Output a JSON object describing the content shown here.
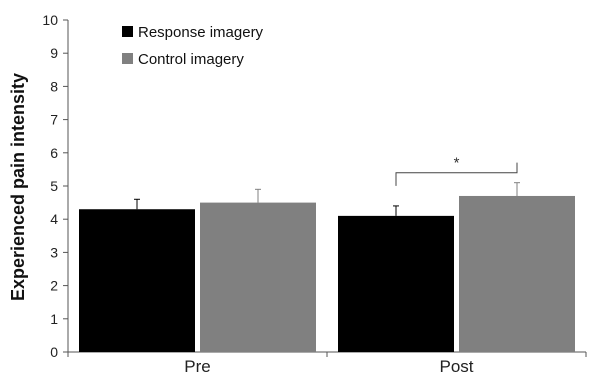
{
  "chart_data": {
    "type": "bar",
    "title": "",
    "xlabel": "",
    "ylabel": "Experienced pain intensity",
    "ylim": [
      0,
      10
    ],
    "yticks": [
      "0",
      "1",
      "2",
      "3",
      "4",
      "5",
      "6",
      "7",
      "8",
      "9",
      "10"
    ],
    "categories": [
      "Pre",
      "Post"
    ],
    "series": [
      {
        "name": "Response imagery",
        "color": "#000000",
        "values": [
          4.3,
          4.1
        ],
        "errors": [
          0.3,
          0.3
        ]
      },
      {
        "name": "Control imagery",
        "color": "#808080",
        "values": [
          4.5,
          4.7
        ],
        "errors": [
          0.4,
          0.4
        ]
      }
    ],
    "legend_position": "top-left",
    "grid": false,
    "annotations": [
      {
        "text": "*",
        "category": "Post",
        "between_series": [
          0,
          1
        ],
        "y": 5.4
      }
    ]
  }
}
